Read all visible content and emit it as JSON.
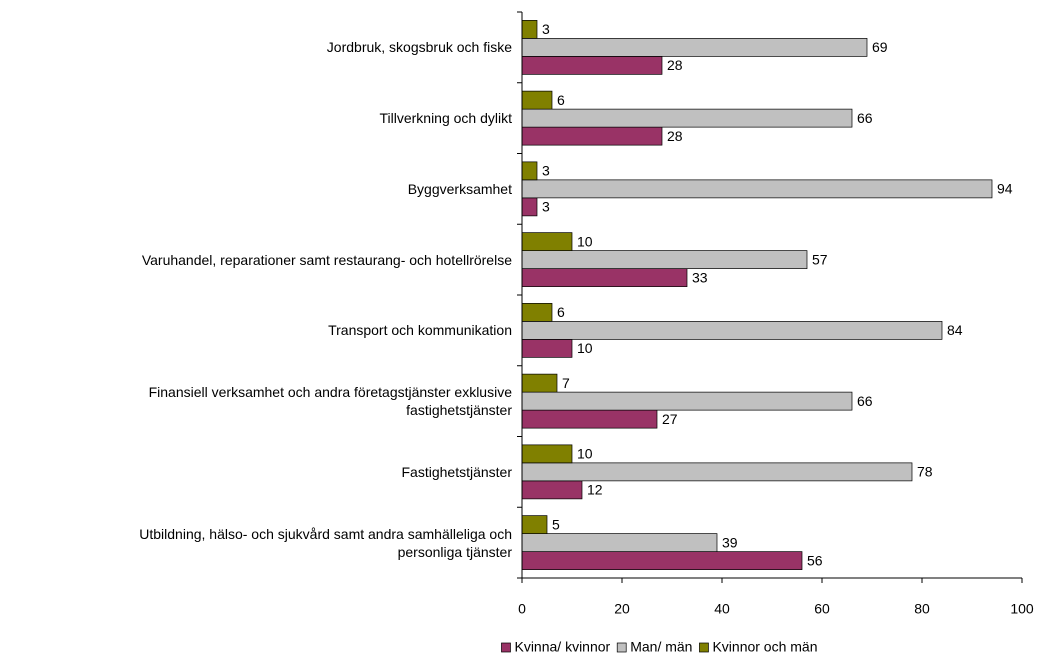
{
  "chart_data": {
    "type": "hbar",
    "categories": [
      "Jordbruk, skogsbruk och fiske",
      "Tillverkning och dylikt",
      "Byggverksamhet",
      "Varuhandel, reparationer samt restaurang- och hotellrörelse",
      "Transport och kommunikation",
      "Finansiell verksamhet och andra företagstjänster exklusive\nfastighetstjänster",
      "Fastighetstjänster",
      "Utbildning, hälso- och sjukvård samt andra samhälleliga och\npersonliga tjänster"
    ],
    "series": [
      {
        "name": "Kvinna/ kvinnor",
        "color": "#993366",
        "values": [
          28,
          28,
          3,
          33,
          10,
          27,
          12,
          56
        ]
      },
      {
        "name": "Man/ män",
        "color": "#c0c0c0",
        "values": [
          69,
          66,
          94,
          57,
          84,
          66,
          78,
          39
        ]
      },
      {
        "name": "Kvinnor och män",
        "color": "#808000",
        "values": [
          3,
          6,
          3,
          10,
          6,
          7,
          10,
          5
        ]
      }
    ],
    "xlim": [
      0,
      100
    ],
    "xticks": [
      0,
      20,
      40,
      60,
      80,
      100
    ],
    "legend": "bottom"
  }
}
